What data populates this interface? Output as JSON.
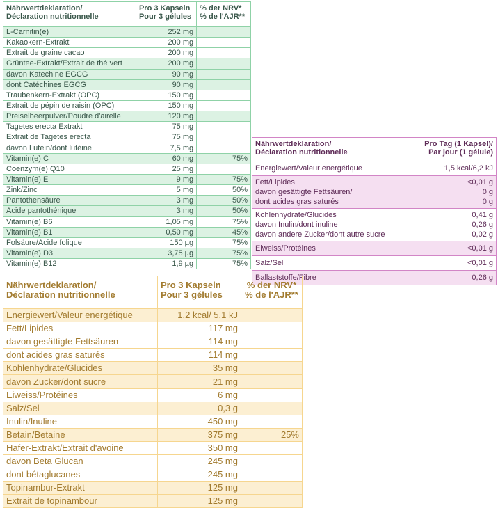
{
  "green_table": {
    "header": {
      "col1": [
        "Nährwertdeklaration/",
        "Déclaration nutritionnelle"
      ],
      "col2": [
        "Pro 3 Kapseln",
        "Pour 3 gélules"
      ],
      "col3": [
        "% der NRV*",
        "% de l'AJR**"
      ]
    },
    "groups": [
      {
        "shaded": true,
        "rows": [
          {
            "name": "L-Carnitin(e)",
            "amount": "252 mg",
            "nrv": ""
          }
        ]
      },
      {
        "shaded": false,
        "rows": [
          {
            "name": "Kakaokern-Extrakt",
            "amount": "200 mg",
            "nrv": ""
          },
          {
            "name": "Extrait de graine cacao",
            "amount": "200 mg",
            "nrv": ""
          }
        ]
      },
      {
        "shaded": true,
        "rows": [
          {
            "name": "Grüntee-Extrakt/Extrait de thé vert",
            "amount": "200 mg",
            "nrv": ""
          },
          {
            "name": "davon Katechine EGCG",
            "amount": "90 mg",
            "nrv": ""
          },
          {
            "name": "dont Catéchines EGCG",
            "amount": "90 mg",
            "nrv": ""
          }
        ]
      },
      {
        "shaded": false,
        "rows": [
          {
            "name": "Traubenkern-Extrakt (OPC)",
            "amount": "150 mg",
            "nrv": ""
          },
          {
            "name": "Extrait de pépin de raisin (OPC)",
            "amount": "150 mg",
            "nrv": ""
          }
        ]
      },
      {
        "shaded": true,
        "rows": [
          {
            "name": "Preiselbeerpulver/Poudre d'airelle",
            "amount": "120 mg",
            "nrv": ""
          }
        ]
      },
      {
        "shaded": false,
        "rows": [
          {
            "name": "Tagetes erecta Extrakt",
            "amount": "75 mg",
            "nrv": ""
          },
          {
            "name": "Extrait de Tagetes erecta",
            "amount": "75 mg",
            "nrv": ""
          },
          {
            "name": "davon Lutein/dont lutéine",
            "amount": "7,5 mg",
            "nrv": ""
          }
        ]
      },
      {
        "shaded": true,
        "rows": [
          {
            "name": "Vitamin(e) C",
            "amount": "60 mg",
            "nrv": "75%"
          }
        ]
      },
      {
        "shaded": false,
        "rows": [
          {
            "name": "Coenzym(e) Q10",
            "amount": "25 mg",
            "nrv": ""
          }
        ]
      },
      {
        "shaded": true,
        "rows": [
          {
            "name": "Vitamin(e) E",
            "amount": "9 mg",
            "nrv": "75%"
          }
        ]
      },
      {
        "shaded": false,
        "rows": [
          {
            "name": "Zink/Zinc",
            "amount": "5 mg",
            "nrv": "50%"
          }
        ]
      },
      {
        "shaded": true,
        "rows": [
          {
            "name": "Pantothensäure",
            "amount": "3 mg",
            "nrv": "50%"
          },
          {
            "name": "Acide pantothénique",
            "amount": "3 mg",
            "nrv": "50%"
          }
        ]
      },
      {
        "shaded": false,
        "rows": [
          {
            "name": "Vitamin(e) B6",
            "amount": "1,05 mg",
            "nrv": "75%"
          }
        ]
      },
      {
        "shaded": true,
        "rows": [
          {
            "name": "Vitamin(e) B1",
            "amount": "0,50 mg",
            "nrv": "45%"
          }
        ]
      },
      {
        "shaded": false,
        "rows": [
          {
            "name": "Folsäure/Acide folique",
            "amount": "150 µg",
            "nrv": "75%"
          }
        ]
      },
      {
        "shaded": true,
        "rows": [
          {
            "name": "Vitamin(e) D3",
            "amount": "3,75 µg",
            "nrv": "75%"
          }
        ]
      },
      {
        "shaded": false,
        "rows": [
          {
            "name": "Vitamin(e) B12",
            "amount": "1,9 µg",
            "nrv": "75%"
          }
        ]
      }
    ]
  },
  "purple_table": {
    "header": {
      "col1": [
        "Nährwertdeklaration/",
        "Déclaration nutritionnelle"
      ],
      "col2": [
        "Pro Tag (1 Kapsel)/",
        "Par jour (1 gélule)"
      ]
    },
    "groups": [
      {
        "shaded": false,
        "names": [
          "Energiewert/Valeur energétique"
        ],
        "amounts": [
          "1,5 kcal/6,2 kJ"
        ]
      },
      {
        "shaded": true,
        "names": [
          "Fett/Lipides",
          "davon gesättigte Fettsäuren/",
          "dont acides gras saturés"
        ],
        "amounts": [
          "<0,01 g",
          "0 g",
          "0 g"
        ]
      },
      {
        "shaded": false,
        "names": [
          "Kohlenhydrate/Glucides",
          "davon Inulin/dont inuline",
          "davon andere Zucker/dont autre sucre"
        ],
        "amounts": [
          "0,41 g",
          "0,26 g",
          "0,02 g"
        ]
      },
      {
        "shaded": true,
        "names": [
          "Eiweiss/Protéines"
        ],
        "amounts": [
          "<0,01 g"
        ]
      },
      {
        "shaded": false,
        "names": [
          "Salz/Sel"
        ],
        "amounts": [
          "<0,01 g"
        ]
      },
      {
        "shaded": true,
        "names": [
          "Ballaststoffe/Fibre"
        ],
        "amounts": [
          "0,26 g"
        ]
      }
    ]
  },
  "orange_table": {
    "header": {
      "col1": [
        "Nährwertdeklaration/",
        "Déclaration nutritionnelle"
      ],
      "col2": [
        "Pro 3 Kapseln",
        "Pour 3 gélules"
      ],
      "col3": [
        "% der NRV*",
        "% de l'AJR**"
      ]
    },
    "groups": [
      {
        "shaded": true,
        "rows": [
          {
            "name": "Energiewert/Valeur energétique",
            "amount": "1,2 kcal/ 5,1 kJ",
            "nrv": ""
          }
        ]
      },
      {
        "shaded": false,
        "rows": [
          {
            "name": "Fett/Lipides",
            "amount": "117 mg",
            "nrv": ""
          },
          {
            "name": "davon gesättigte Fettsäuren",
            "amount": "114 mg",
            "nrv": ""
          },
          {
            "name": "dont acides gras saturés",
            "amount": "114 mg",
            "nrv": ""
          }
        ]
      },
      {
        "shaded": true,
        "rows": [
          {
            "name": "Kohlenhydrate/Glucides",
            "amount": "35 mg",
            "nrv": ""
          },
          {
            "name": "davon Zucker/dont sucre",
            "amount": "21 mg",
            "nrv": ""
          }
        ]
      },
      {
        "shaded": false,
        "rows": [
          {
            "name": "Eiweiss/Protéines",
            "amount": "6 mg",
            "nrv": ""
          }
        ]
      },
      {
        "shaded": true,
        "rows": [
          {
            "name": "Salz/Sel",
            "amount": "0,3 g",
            "nrv": ""
          }
        ]
      },
      {
        "shaded": false,
        "rows": [
          {
            "name": "Inulin/Inuline",
            "amount": "450 mg",
            "nrv": ""
          }
        ]
      },
      {
        "shaded": true,
        "rows": [
          {
            "name": "Betain/Betaine",
            "amount": "375 mg",
            "nrv": "25%"
          }
        ]
      },
      {
        "shaded": false,
        "rows": [
          {
            "name": "Hafer-Extrakt/Extrait d'avoine",
            "amount": "350 mg",
            "nrv": ""
          },
          {
            "name": "davon Beta Glucan",
            "amount": "245 mg",
            "nrv": ""
          },
          {
            "name": "dont bétaglucanes",
            "amount": "245 mg",
            "nrv": ""
          }
        ]
      },
      {
        "shaded": true,
        "rows": [
          {
            "name": "Topinambur-Extrakt",
            "amount": "125 mg",
            "nrv": ""
          },
          {
            "name": "Extrait de topinambour",
            "amount": "125 mg",
            "nrv": ""
          }
        ]
      }
    ]
  }
}
